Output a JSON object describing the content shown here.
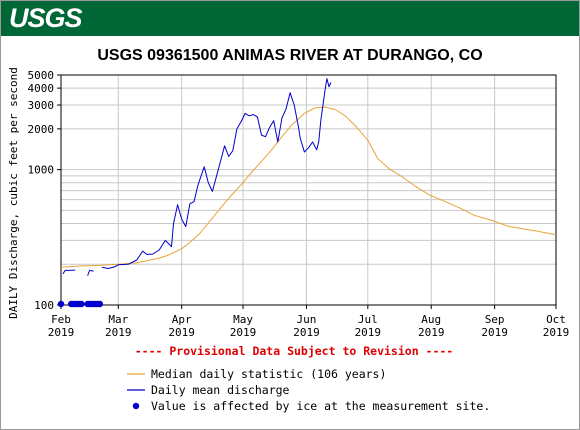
{
  "header": {
    "logo_text": "USGS",
    "brand_color": "#006837"
  },
  "chart_data": {
    "type": "line",
    "title": "USGS 09361500 ANIMAS RIVER AT DURANGO, CO",
    "ylabel": "DAILY Discharge, cubic feet per second",
    "xlabel": "",
    "y_scale": "log",
    "ylim": [
      100,
      5000
    ],
    "xlim": [
      "2019-02-01",
      "2019-10-01"
    ],
    "grid": true,
    "y_tick_labels": [
      "100",
      "1000",
      "2000",
      "3000",
      "4000",
      "5000"
    ],
    "x_tick_labels": [
      {
        "month": "Feb",
        "year": "2019",
        "date": "2019-02-01"
      },
      {
        "month": "Mar",
        "year": "2019",
        "date": "2019-03-01"
      },
      {
        "month": "Apr",
        "year": "2019",
        "date": "2019-04-01"
      },
      {
        "month": "May",
        "year": "2019",
        "date": "2019-05-01"
      },
      {
        "month": "Jun",
        "year": "2019",
        "date": "2019-06-01"
      },
      {
        "month": "Jul",
        "year": "2019",
        "date": "2019-07-01"
      },
      {
        "month": "Aug",
        "year": "2019",
        "date": "2019-08-01"
      },
      {
        "month": "Sep",
        "year": "2019",
        "date": "2019-09-01"
      },
      {
        "month": "Oct",
        "year": "2019",
        "date": "2019-10-01"
      }
    ],
    "provisional_note": "---- Provisional Data Subject to Revision ----",
    "series": [
      {
        "name": "Median daily statistic (106 years)",
        "color": "#e8a33a",
        "points": [
          [
            "2019-02-01",
            190
          ],
          [
            "2019-02-10",
            194
          ],
          [
            "2019-02-20",
            196
          ],
          [
            "2019-03-01",
            200
          ],
          [
            "2019-03-10",
            205
          ],
          [
            "2019-03-20",
            220
          ],
          [
            "2019-03-25",
            232
          ],
          [
            "2019-04-01",
            260
          ],
          [
            "2019-04-05",
            290
          ],
          [
            "2019-04-10",
            340
          ],
          [
            "2019-04-15",
            420
          ],
          [
            "2019-04-20",
            520
          ],
          [
            "2019-04-25",
            640
          ],
          [
            "2019-05-01",
            800
          ],
          [
            "2019-05-05",
            950
          ],
          [
            "2019-05-10",
            1150
          ],
          [
            "2019-05-15",
            1400
          ],
          [
            "2019-05-20",
            1750
          ],
          [
            "2019-05-25",
            2150
          ],
          [
            "2019-05-31",
            2600
          ],
          [
            "2019-06-05",
            2850
          ],
          [
            "2019-06-10",
            2900
          ],
          [
            "2019-06-15",
            2780
          ],
          [
            "2019-06-20",
            2500
          ],
          [
            "2019-06-25",
            2100
          ],
          [
            "2019-07-01",
            1650
          ],
          [
            "2019-07-06",
            1200
          ],
          [
            "2019-07-12",
            1000
          ],
          [
            "2019-07-18",
            880
          ],
          [
            "2019-07-25",
            740
          ],
          [
            "2019-08-01",
            640
          ],
          [
            "2019-08-08",
            580
          ],
          [
            "2019-08-15",
            520
          ],
          [
            "2019-08-22",
            460
          ],
          [
            "2019-08-31",
            420
          ],
          [
            "2019-09-08",
            380
          ],
          [
            "2019-09-15",
            365
          ],
          [
            "2019-09-22",
            350
          ],
          [
            "2019-10-01",
            330
          ]
        ]
      },
      {
        "name": "Daily mean discharge",
        "color": "#0000cc",
        "points": [
          [
            "2019-02-02",
            170
          ],
          [
            "2019-02-03",
            180
          ],
          [
            "2019-02-05",
            180
          ],
          [
            "2019-02-08",
            181
          ],
          null,
          [
            "2019-02-14",
            165
          ],
          [
            "2019-02-15",
            180
          ],
          [
            "2019-02-17",
            178
          ],
          null,
          [
            "2019-02-21",
            190
          ],
          [
            "2019-02-24",
            186
          ],
          [
            "2019-02-27",
            191
          ],
          [
            "2019-03-01",
            198
          ],
          [
            "2019-03-06",
            200
          ],
          [
            "2019-03-10",
            215
          ],
          [
            "2019-03-13",
            250
          ],
          [
            "2019-03-15",
            236
          ],
          [
            "2019-03-18",
            238
          ],
          [
            "2019-03-21",
            255
          ],
          [
            "2019-03-24",
            300
          ],
          [
            "2019-03-27",
            270
          ],
          [
            "2019-03-28",
            400
          ],
          [
            "2019-03-30",
            550
          ],
          [
            "2019-04-01",
            430
          ],
          [
            "2019-04-03",
            380
          ],
          [
            "2019-04-05",
            560
          ],
          [
            "2019-04-07",
            580
          ],
          [
            "2019-04-09",
            770
          ],
          [
            "2019-04-12",
            1050
          ],
          [
            "2019-04-14",
            800
          ],
          [
            "2019-04-16",
            690
          ],
          [
            "2019-04-20",
            1150
          ],
          [
            "2019-04-22",
            1500
          ],
          [
            "2019-04-24",
            1250
          ],
          [
            "2019-04-26",
            1380
          ],
          [
            "2019-04-28",
            2000
          ],
          [
            "2019-04-30",
            2250
          ],
          [
            "2019-05-02",
            2600
          ],
          [
            "2019-05-04",
            2500
          ],
          [
            "2019-05-06",
            2550
          ],
          [
            "2019-05-08",
            2450
          ],
          [
            "2019-05-10",
            1800
          ],
          [
            "2019-05-12",
            1750
          ],
          [
            "2019-05-14",
            2050
          ],
          [
            "2019-05-16",
            2300
          ],
          [
            "2019-05-18",
            1600
          ],
          [
            "2019-05-20",
            2400
          ],
          [
            "2019-05-22",
            2800
          ],
          [
            "2019-05-24",
            3700
          ],
          [
            "2019-05-26",
            3000
          ],
          [
            "2019-05-28",
            2100
          ],
          [
            "2019-05-29",
            1700
          ],
          [
            "2019-05-31",
            1350
          ],
          [
            "2019-06-02",
            1450
          ],
          [
            "2019-06-04",
            1600
          ],
          [
            "2019-06-06",
            1400
          ],
          [
            "2019-06-07",
            1600
          ],
          [
            "2019-06-08",
            2300
          ],
          [
            "2019-06-10",
            3800
          ],
          [
            "2019-06-11",
            4700
          ],
          [
            "2019-06-12",
            4100
          ],
          [
            "2019-06-13",
            4400
          ]
        ]
      }
    ],
    "ice_affected_points": [
      [
        "2019-02-01",
        100
      ],
      [
        "2019-02-06",
        100
      ],
      [
        "2019-02-07",
        100
      ],
      [
        "2019-02-08",
        100
      ],
      [
        "2019-02-09",
        100
      ],
      [
        "2019-02-10",
        100
      ],
      [
        "2019-02-11",
        100
      ],
      [
        "2019-02-14",
        100
      ],
      [
        "2019-02-15",
        100
      ],
      [
        "2019-02-16",
        100
      ],
      [
        "2019-02-17",
        100
      ],
      [
        "2019-02-18",
        100
      ],
      [
        "2019-02-19",
        100
      ],
      [
        "2019-02-20",
        100
      ]
    ],
    "legend": {
      "placement": "bottom",
      "entries": [
        {
          "label": "Median daily statistic (106 years)",
          "marker": "line",
          "color": "#e8a33a"
        },
        {
          "label": "Daily mean discharge",
          "marker": "line",
          "color": "#0000cc"
        },
        {
          "label": "Value is affected by ice at the measurement site.",
          "marker": "dot",
          "color": "#0000cc"
        }
      ]
    }
  }
}
